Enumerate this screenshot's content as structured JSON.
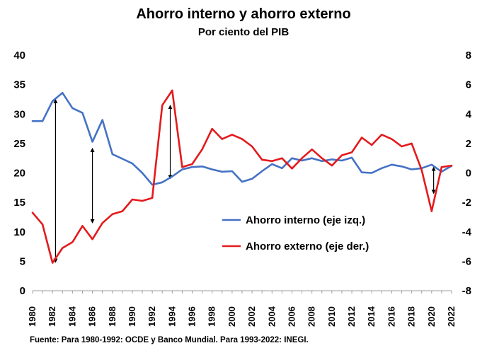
{
  "chart_data": {
    "type": "line",
    "title": "Ahorro interno y ahorro externo",
    "subtitle": "Por ciento del PIB",
    "source": "Fuente: Para 1980-1992: OCDE y Banco Mundial. Para 1993-2022: INEGI.",
    "x": [
      1980,
      1981,
      1982,
      1983,
      1984,
      1985,
      1986,
      1987,
      1988,
      1989,
      1990,
      1991,
      1992,
      1993,
      1994,
      1995,
      1996,
      1997,
      1998,
      1999,
      2000,
      2001,
      2002,
      2003,
      2004,
      2005,
      2006,
      2007,
      2008,
      2009,
      2010,
      2011,
      2012,
      2013,
      2014,
      2015,
      2016,
      2017,
      2018,
      2019,
      2020,
      2021,
      2022
    ],
    "x_ticks": [
      "1980",
      "1982",
      "1984",
      "1986",
      "1988",
      "1990",
      "1992",
      "1994",
      "1996",
      "1998",
      "2000",
      "2002",
      "2004",
      "2006",
      "2008",
      "2010",
      "2012",
      "2014",
      "2016",
      "2018",
      "2020",
      "2022"
    ],
    "y_left": {
      "lim": [
        0,
        40
      ],
      "ticks": [
        "0",
        "5",
        "10",
        "15",
        "20",
        "25",
        "30",
        "35",
        "40"
      ]
    },
    "y_right": {
      "lim": [
        -8,
        8
      ],
      "ticks": [
        "-8",
        "-6",
        "-4",
        "-2",
        "0",
        "2",
        "4",
        "6",
        "8"
      ]
    },
    "series": [
      {
        "name": "Ahorro interno (eje izq.)",
        "axis": "left",
        "color": "#4472C4",
        "values": [
          28.8,
          28.8,
          32.2,
          33.6,
          31.0,
          30.2,
          25.3,
          29.0,
          23.2,
          22.4,
          21.6,
          20.0,
          18.0,
          18.4,
          19.4,
          20.6,
          21.0,
          21.1,
          20.6,
          20.2,
          20.3,
          18.5,
          19.0,
          20.3,
          21.5,
          20.8,
          22.5,
          22.1,
          22.5,
          22.0,
          22.3,
          22.1,
          22.6,
          20.1,
          20.0,
          20.8,
          21.4,
          21.1,
          20.6,
          20.8,
          21.4,
          20.2,
          21.2
        ]
      },
      {
        "name": "Ahorro externo (eje der.)",
        "axis": "right",
        "color": "#E31A1C",
        "values": [
          -2.7,
          -3.5,
          -6.1,
          -5.1,
          -4.7,
          -3.6,
          -4.5,
          -3.4,
          -2.8,
          -2.6,
          -1.8,
          -1.9,
          -1.7,
          4.6,
          5.6,
          0.4,
          0.6,
          1.6,
          3.0,
          2.3,
          2.6,
          2.3,
          1.8,
          0.9,
          0.8,
          1.0,
          0.3,
          1.0,
          1.6,
          1.0,
          0.5,
          1.2,
          1.4,
          2.4,
          1.9,
          2.6,
          2.3,
          1.8,
          2.0,
          0.2,
          -2.6,
          0.4,
          0.5
        ]
      }
    ],
    "legend_position": "center-right",
    "annotations": [
      {
        "type": "double-arrow",
        "year": 1982.3,
        "from": 32.5,
        "to": 4.8
      },
      {
        "type": "double-arrow",
        "year": 1986.0,
        "from": 24.2,
        "to": 11.5
      },
      {
        "type": "double-arrow",
        "year": 1993.8,
        "from": 31.5,
        "to": 19.0
      },
      {
        "type": "double-arrow",
        "year": 2020.2,
        "from": 21.0,
        "to": 16.5
      }
    ],
    "grid": false
  }
}
